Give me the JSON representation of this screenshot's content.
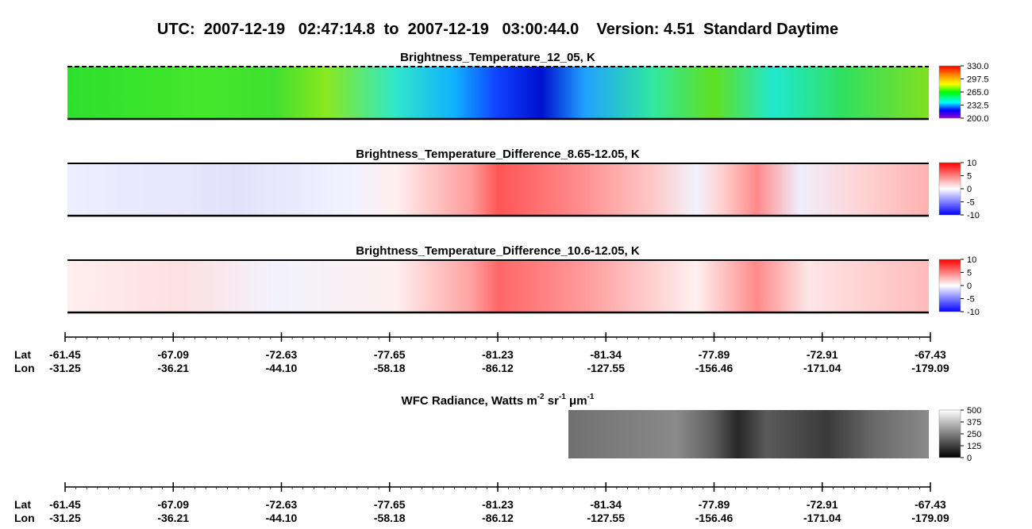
{
  "header": {
    "title": "UTC:  2007-12-19   02:47:14.8  to  2007-12-19   03:00:44.0    Version: 4.51  Standard Daytime"
  },
  "panels": [
    {
      "title": "Brightness_Temperature_12_05, K",
      "colorbar": [
        "330.0",
        "297.5",
        "265.0",
        "232.5",
        "200.0"
      ]
    },
    {
      "title": "Brightness_Temperature_Difference_8.65-12.05, K",
      "colorbar": [
        "10",
        "5",
        "0",
        "-5",
        "-10"
      ]
    },
    {
      "title": "Brightness_Temperature_Difference_10.6-12.05, K",
      "colorbar": [
        "10",
        "5",
        "0",
        "-5",
        "-10"
      ]
    }
  ],
  "wfc": {
    "title_parts": [
      "WFC Radiance, Watts m",
      "-2",
      " sr",
      "-1",
      " μm",
      "-1"
    ],
    "colorbar": [
      "500",
      "375",
      "250",
      "125",
      "0"
    ]
  },
  "axes": [
    {
      "lat_label": "Lat",
      "lon_label": "Lon",
      "lat": [
        "-61.45",
        "-67.09",
        "-72.63",
        "-77.65",
        "-81.23",
        "-81.34",
        "-77.89",
        "-72.91",
        "-67.43"
      ],
      "lon": [
        "-31.25",
        "-36.21",
        "-44.10",
        "-58.18",
        "-86.12",
        "-127.55",
        "-156.46",
        "-171.04",
        "-179.09"
      ]
    },
    {
      "lat_label": "Lat",
      "lon_label": "Lon",
      "lat": [
        "-61.45",
        "-67.09",
        "-72.63",
        "-77.65",
        "-81.23",
        "-81.34",
        "-77.89",
        "-72.91",
        "-67.43"
      ],
      "lon": [
        "-31.25",
        "-36.21",
        "-44.10",
        "-58.18",
        "-86.12",
        "-127.55",
        "-156.46",
        "-171.04",
        "-179.09"
      ]
    }
  ]
}
